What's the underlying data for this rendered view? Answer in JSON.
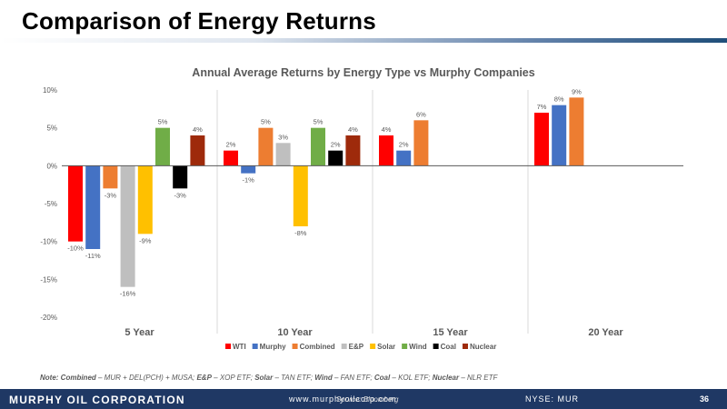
{
  "slide": {
    "title": "Comparison of Energy Returns",
    "note_prefix": "Note: ",
    "note_items": [
      {
        "label": "Combined",
        "text": " – MUR + DEL(PCH) + MUSA; "
      },
      {
        "label": "E&P",
        "text": " – XOP ETF; "
      },
      {
        "label": "Solar",
        "text": " – TAN ETF; "
      },
      {
        "label": "Wind",
        "text": " – FAN ETF; "
      },
      {
        "label": "Coal",
        "text": " – KOL ETF; "
      },
      {
        "label": "Nuclear",
        "text": " – NLR ETF"
      }
    ],
    "footer": {
      "company": "MURPHY OIL CORPORATION",
      "website": "www.murphyoilcorp.com",
      "source": "Source: Bloomberg",
      "ticker": "NYSE: MUR",
      "page": "36"
    }
  },
  "colors": {
    "WTI": "#ff0000",
    "Murphy": "#4472c4",
    "Combined": "#ed7d31",
    "E&P": "#bfbfbf",
    "Solar": "#ffc000",
    "Wind": "#70ad47",
    "Coal": "#000000",
    "Nuclear": "#9e2a0b"
  },
  "chart_data": {
    "type": "bar",
    "title": "Annual Average Returns by Energy Type vs Murphy Companies",
    "categories": [
      "5 Year",
      "10 Year",
      "15 Year",
      "20 Year"
    ],
    "ylim": [
      -20,
      10
    ],
    "yticks": [
      10,
      5,
      0,
      -5,
      -10,
      -15,
      -20
    ],
    "ytick_labels": [
      "10%",
      "5%",
      "0%",
      "-5%",
      "-10%",
      "-15%",
      "-20%"
    ],
    "legend_position": "bottom",
    "series": [
      {
        "name": "WTI",
        "values": [
          -10,
          2,
          4,
          7
        ],
        "labels": [
          "-10%",
          "2%",
          "4%",
          "7%"
        ]
      },
      {
        "name": "Murphy",
        "values": [
          -11,
          -1,
          2,
          8
        ],
        "labels": [
          "-11%",
          "-1%",
          "2%",
          "8%"
        ]
      },
      {
        "name": "Combined",
        "values": [
          -3,
          5,
          6,
          9
        ],
        "labels": [
          "-3%",
          "5%",
          "6%",
          "9%"
        ]
      },
      {
        "name": "E&P",
        "values": [
          -16,
          3,
          null,
          null
        ],
        "labels": [
          "-16%",
          "3%",
          "",
          ""
        ]
      },
      {
        "name": "Solar",
        "values": [
          -9,
          -8,
          null,
          null
        ],
        "labels": [
          "-9%",
          "-8%",
          "",
          ""
        ]
      },
      {
        "name": "Wind",
        "values": [
          5,
          5,
          null,
          null
        ],
        "labels": [
          "5%",
          "5%",
          "",
          ""
        ]
      },
      {
        "name": "Coal",
        "values": [
          -3,
          2,
          null,
          null
        ],
        "labels": [
          "-3%",
          "2%",
          "",
          ""
        ]
      },
      {
        "name": "Nuclear",
        "values": [
          4,
          4,
          null,
          null
        ],
        "labels": [
          "4%",
          "4%",
          "",
          ""
        ]
      }
    ]
  }
}
